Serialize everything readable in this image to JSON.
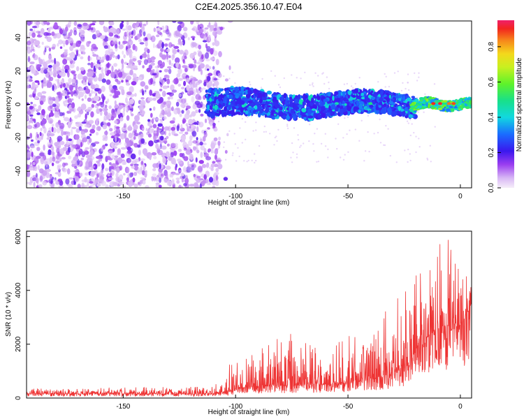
{
  "title": "C2E4.2025.356.10.47.E04",
  "chart_data": [
    {
      "type": "heatmap",
      "xlabel": "Height of straight line (km)",
      "ylabel": "Frequency (Hz)",
      "xlim": [
        -193,
        5
      ],
      "ylim": [
        -50,
        50
      ],
      "xticks": [
        -150,
        -100,
        -50,
        0
      ],
      "yticks": [
        -40,
        -20,
        0,
        20,
        40
      ],
      "colorbar": {
        "label": "Normalized spectral amplitude",
        "range": [
          0,
          0.95
        ],
        "ticks": [
          0.0,
          0.2,
          0.4,
          0.6,
          0.8
        ]
      },
      "regions": [
        {
          "x_range": [
            -193,
            -107
          ],
          "freq_range": [
            -50,
            50
          ],
          "level": "low",
          "description_value": 0.15
        },
        {
          "x_range": [
            -113,
            -20
          ],
          "freq_range": [
            -10,
            10
          ],
          "level": "medium",
          "description_value": 0.3
        },
        {
          "x_range": [
            -20,
            5
          ],
          "freq_range": [
            -4,
            4
          ],
          "level": "high",
          "description_value": 0.9
        }
      ],
      "grid": false
    },
    {
      "type": "line",
      "xlabel": "Height of straight line (km)",
      "ylabel": "SNR (10 * v/v)",
      "xlim": [
        -193,
        5
      ],
      "ylim": [
        0,
        6200
      ],
      "xticks": [
        -150,
        -100,
        -50,
        0
      ],
      "yticks": [
        0,
        2000,
        4000,
        6000
      ],
      "color": "#ee3333",
      "envelope": [
        {
          "x": -193,
          "baseline": 150,
          "peak": 350
        },
        {
          "x": -150,
          "baseline": 150,
          "peak": 400
        },
        {
          "x": -110,
          "baseline": 150,
          "peak": 420
        },
        {
          "x": -104,
          "baseline": 250,
          "peak": 1200
        },
        {
          "x": -95,
          "baseline": 400,
          "peak": 1600
        },
        {
          "x": -80,
          "baseline": 450,
          "peak": 2500
        },
        {
          "x": -60,
          "baseline": 500,
          "peak": 2000
        },
        {
          "x": -40,
          "baseline": 650,
          "peak": 2700
        },
        {
          "x": -30,
          "baseline": 900,
          "peak": 3800
        },
        {
          "x": -22,
          "baseline": 1200,
          "peak": 5200
        },
        {
          "x": -18,
          "baseline": 2200,
          "peak": 5200
        },
        {
          "x": -5,
          "baseline": 2500,
          "peak": 6200
        },
        {
          "x": 0,
          "baseline": 2500,
          "peak": 4700
        },
        {
          "x": 5,
          "baseline": 3500,
          "peak": 4500
        }
      ],
      "grid": false
    }
  ]
}
